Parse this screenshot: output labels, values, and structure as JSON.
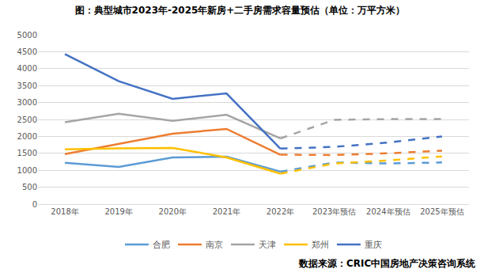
{
  "chart_data": {
    "type": "line",
    "title": "图：典型城市2023年-2025年新房+二手房需求容量预估（单位：万平方米）",
    "source": "数据来源：CRIC中国房地产决策咨询系统",
    "categories": [
      "2018年",
      "2019年",
      "2020年",
      "2021年",
      "2022年",
      "2023年预估",
      "2024年预估",
      "2025年预估"
    ],
    "series": [
      {
        "name": "合肥",
        "color": "#5B9BD5",
        "line_style": "solid",
        "values": [
          1220,
          1100,
          1380,
          1400,
          960,
          null,
          null,
          null
        ]
      },
      {
        "name": "南京",
        "color": "#ED7D31",
        "line_style": "solid",
        "values": [
          1480,
          1780,
          2080,
          2220,
          1460,
          null,
          null,
          null
        ]
      },
      {
        "name": "天津",
        "color": "#A5A5A5",
        "line_style": "solid",
        "values": [
          2420,
          2670,
          2460,
          2640,
          1940,
          null,
          null,
          null
        ]
      },
      {
        "name": "郑州",
        "color": "#FFC000",
        "line_style": "solid",
        "values": [
          1620,
          1650,
          1660,
          1380,
          900,
          null,
          null,
          null
        ]
      },
      {
        "name": "重庆",
        "color": "#4472C4",
        "line_style": "solid",
        "values": [
          4430,
          3630,
          3110,
          3270,
          1640,
          null,
          null,
          null
        ]
      },
      {
        "name": "合肥",
        "color": "#5B9BD5",
        "line_style": "dashed",
        "values": [
          null,
          null,
          null,
          null,
          960,
          1230,
          1200,
          1230
        ]
      },
      {
        "name": "南京",
        "color": "#ED7D31",
        "line_style": "dashed",
        "values": [
          null,
          null,
          null,
          null,
          1460,
          1450,
          1500,
          1580
        ]
      },
      {
        "name": "天津",
        "color": "#A5A5A5",
        "line_style": "dashed",
        "values": [
          null,
          null,
          null,
          null,
          1940,
          2490,
          2510,
          2510
        ]
      },
      {
        "name": "郑州",
        "color": "#FFC000",
        "line_style": "dashed",
        "values": [
          null,
          null,
          null,
          null,
          900,
          1200,
          1290,
          1410
        ]
      },
      {
        "name": "重庆",
        "color": "#4472C4",
        "line_style": "dashed",
        "values": [
          null,
          null,
          null,
          null,
          1640,
          1690,
          1820,
          2000
        ]
      }
    ],
    "ylim": [
      0,
      5000
    ],
    "yticks": [
      0,
      500,
      1000,
      1500,
      2000,
      2500,
      3000,
      3500,
      4000,
      4500,
      5000
    ],
    "grid": true,
    "legend": "bottom"
  }
}
